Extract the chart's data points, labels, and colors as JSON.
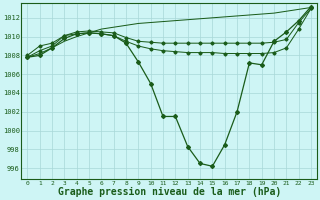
{
  "bg_color": "#cef5f5",
  "grid_color": "#a8d8d8",
  "line_color": "#1a5c1a",
  "xlabel": "Graphe pression niveau de la mer (hPa)",
  "xlabel_fontsize": 7,
  "yticks": [
    996,
    998,
    1000,
    1002,
    1004,
    1006,
    1008,
    1010,
    1012
  ],
  "xticks": [
    0,
    1,
    2,
    3,
    4,
    5,
    6,
    7,
    8,
    9,
    10,
    11,
    12,
    13,
    14,
    15,
    16,
    17,
    18,
    19,
    20,
    21,
    22,
    23
  ],
  "ylim_bottom": 994.8,
  "ylim_top": 1013.6,
  "marker": "D",
  "marker_size": 2.0,
  "linewidth": 0.9,
  "line_smooth": {
    "x": [
      0,
      1,
      2,
      3,
      4,
      5,
      6,
      7,
      8,
      9,
      10,
      11,
      12,
      13,
      14,
      15,
      16,
      17,
      18,
      19,
      20,
      21,
      22,
      23
    ],
    "y": [
      1007.8,
      1008.2,
      1008.8,
      1009.5,
      1010.0,
      1010.4,
      1010.8,
      1011.0,
      1011.2,
      1011.4,
      1011.5,
      1011.6,
      1011.7,
      1011.8,
      1011.9,
      1012.0,
      1012.1,
      1012.2,
      1012.3,
      1012.4,
      1012.5,
      1012.7,
      1012.9,
      1013.1
    ]
  },
  "line_mid_high": {
    "x": [
      0,
      1,
      2,
      3,
      4,
      5,
      6,
      7,
      8,
      9,
      10,
      11,
      12,
      13,
      14,
      15,
      16,
      17,
      18,
      19,
      20,
      21,
      22,
      23
    ],
    "y": [
      1008.0,
      1009.0,
      1009.3,
      1010.1,
      1010.5,
      1010.6,
      1010.5,
      1010.4,
      1009.9,
      1009.5,
      1009.4,
      1009.3,
      1009.3,
      1009.3,
      1009.3,
      1009.3,
      1009.3,
      1009.3,
      1009.3,
      1009.3,
      1009.4,
      1009.7,
      1011.5,
      1013.0
    ]
  },
  "line_mid_low": {
    "x": [
      0,
      1,
      2,
      3,
      4,
      5,
      6,
      7,
      8,
      9,
      10,
      11,
      12,
      13,
      14,
      15,
      16,
      17,
      18,
      19,
      20,
      21,
      22,
      23
    ],
    "y": [
      1007.8,
      1008.5,
      1009.0,
      1010.1,
      1010.3,
      1010.4,
      1010.3,
      1010.1,
      1009.5,
      1009.0,
      1008.7,
      1008.5,
      1008.4,
      1008.3,
      1008.3,
      1008.3,
      1008.2,
      1008.2,
      1008.2,
      1008.2,
      1008.3,
      1008.8,
      1010.8,
      1013.0
    ]
  },
  "line_deep": {
    "x": [
      0,
      1,
      2,
      3,
      4,
      5,
      6,
      7,
      8,
      9,
      10,
      11,
      12,
      13,
      14,
      15,
      16,
      17,
      18,
      19,
      20,
      21,
      22,
      23
    ],
    "y": [
      1007.8,
      1008.0,
      1008.8,
      1009.8,
      1010.3,
      1010.4,
      1010.3,
      1010.1,
      1009.3,
      1007.3,
      1005.0,
      1001.5,
      1001.5,
      998.3,
      996.5,
      996.2,
      998.5,
      1002.0,
      1007.2,
      1007.0,
      1009.5,
      1010.5,
      1011.7,
      1013.2
    ]
  }
}
